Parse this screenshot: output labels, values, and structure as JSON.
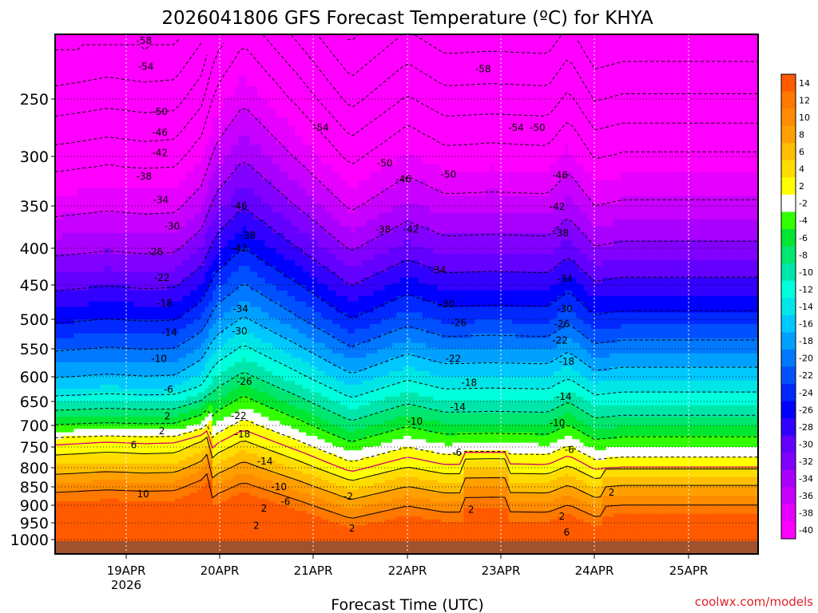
{
  "chart_data": {
    "type": "heatmap",
    "title": "2026041806 GFS Forecast Temperature (ºC) for KHYA",
    "xlabel": "Forecast Time (UTC)",
    "ylabel": "",
    "credit": "coolwx.com/models",
    "y_scale": "pressure (hPa), reversed, non-linear",
    "y_ticks": [
      250,
      300,
      350,
      400,
      450,
      500,
      550,
      600,
      650,
      700,
      750,
      800,
      850,
      900,
      950,
      1000
    ],
    "x_ticks": [
      {
        "label": "19APR",
        "sublabel": "2026"
      },
      {
        "label": "20APR",
        "sublabel": ""
      },
      {
        "label": "21APR",
        "sublabel": ""
      },
      {
        "label": "22APR",
        "sublabel": ""
      },
      {
        "label": "23APR",
        "sublabel": ""
      },
      {
        "label": "24APR",
        "sublabel": ""
      },
      {
        "label": "25APR",
        "sublabel": ""
      }
    ],
    "colorbar": {
      "levels": [
        14,
        12,
        10,
        8,
        6,
        4,
        2,
        -2,
        -4,
        -6,
        -8,
        -10,
        -12,
        -14,
        -16,
        -18,
        -20,
        -22,
        -24,
        -26,
        -28,
        -30,
        -32,
        -34,
        -36,
        -38,
        -40
      ],
      "colors": [
        "#ff5a00",
        "#ff7800",
        "#ff8c00",
        "#ffa000",
        "#ffbe00",
        "#ffdc00",
        "#ffff00",
        "#ffffff",
        "#32ff00",
        "#00e632",
        "#00e66e",
        "#00e6aa",
        "#00ffdc",
        "#00e6e6",
        "#00c8ff",
        "#00a0ff",
        "#0078ff",
        "#0050ff",
        "#0028ff",
        "#0000ff",
        "#3200ff",
        "#6400ff",
        "#8200ff",
        "#aa00ff",
        "#c800ff",
        "#e600ff",
        "#ff00ff"
      ]
    },
    "contour_labels": [
      {
        "text": "-58",
        "t": 0.19,
        "p": 205
      },
      {
        "text": "-54",
        "t": 0.21,
        "p": 225
      },
      {
        "text": "-50",
        "t": 0.36,
        "p": 261
      },
      {
        "text": "-46",
        "t": 0.36,
        "p": 279
      },
      {
        "text": "-42",
        "t": 0.36,
        "p": 297
      },
      {
        "text": "-38",
        "t": 0.19,
        "p": 320
      },
      {
        "text": "-34",
        "t": 0.37,
        "p": 344
      },
      {
        "text": "-30",
        "t": 0.49,
        "p": 374
      },
      {
        "text": "-26",
        "t": 0.31,
        "p": 405
      },
      {
        "text": "-22",
        "t": 0.38,
        "p": 440
      },
      {
        "text": "-18",
        "t": 0.41,
        "p": 477
      },
      {
        "text": "-14",
        "t": 0.46,
        "p": 522
      },
      {
        "text": "-10",
        "t": 0.35,
        "p": 568
      },
      {
        "text": "-6",
        "t": 0.45,
        "p": 626
      },
      {
        "text": "2",
        "t": 0.44,
        "p": 681
      },
      {
        "text": "2",
        "t": 0.38,
        "p": 713
      },
      {
        "text": "6",
        "t": 0.08,
        "p": 745
      },
      {
        "text": "10",
        "t": 0.18,
        "p": 870
      },
      {
        "text": "-38",
        "t": 1.3,
        "p": 385
      },
      {
        "text": "-46",
        "t": 1.21,
        "p": 350
      },
      {
        "text": "-42",
        "t": 1.21,
        "p": 400
      },
      {
        "text": "-34",
        "t": 1.22,
        "p": 485
      },
      {
        "text": "-30",
        "t": 1.21,
        "p": 520
      },
      {
        "text": "-26",
        "t": 1.26,
        "p": 610
      },
      {
        "text": "-22",
        "t": 1.2,
        "p": 680
      },
      {
        "text": "-18",
        "t": 1.24,
        "p": 720
      },
      {
        "text": "-14",
        "t": 1.48,
        "p": 785
      },
      {
        "text": "-10",
        "t": 1.63,
        "p": 850
      },
      {
        "text": "-6",
        "t": 1.7,
        "p": 890
      },
      {
        "text": "2",
        "t": 1.47,
        "p": 909
      },
      {
        "text": "2",
        "t": 1.39,
        "p": 958
      },
      {
        "text": "-54",
        "t": 2.08,
        "p": 275
      },
      {
        "text": "-50",
        "t": 2.76,
        "p": 307
      },
      {
        "text": "-46",
        "t": 2.96,
        "p": 323
      },
      {
        "text": "-38",
        "t": 2.74,
        "p": 378
      },
      {
        "text": "-42",
        "t": 3.04,
        "p": 378
      },
      {
        "text": "-2",
        "t": 2.37,
        "p": 876
      },
      {
        "text": "2",
        "t": 2.41,
        "p": 967
      },
      {
        "text": "-58",
        "t": 3.81,
        "p": 227
      },
      {
        "text": "-54",
        "t": 4.16,
        "p": 275
      },
      {
        "text": "-50",
        "t": 4.39,
        "p": 275
      },
      {
        "text": "-50",
        "t": 3.44,
        "p": 318
      },
      {
        "text": "-34",
        "t": 3.33,
        "p": 430
      },
      {
        "text": "-30",
        "t": 3.42,
        "p": 478
      },
      {
        "text": "-26",
        "t": 3.55,
        "p": 506
      },
      {
        "text": "-22",
        "t": 3.49,
        "p": 568
      },
      {
        "text": "-18",
        "t": 3.66,
        "p": 612
      },
      {
        "text": "-14",
        "t": 3.54,
        "p": 662
      },
      {
        "text": "-10",
        "t": 3.08,
        "p": 692
      },
      {
        "text": "-6",
        "t": 3.53,
        "p": 763
      },
      {
        "text": "2",
        "t": 3.68,
        "p": 913
      },
      {
        "text": "-46",
        "t": 4.63,
        "p": 319
      },
      {
        "text": "-42",
        "t": 4.6,
        "p": 351
      },
      {
        "text": "-38",
        "t": 4.64,
        "p": 382
      },
      {
        "text": "-34",
        "t": 4.68,
        "p": 442
      },
      {
        "text": "-30",
        "t": 4.68,
        "p": 485
      },
      {
        "text": "-26",
        "t": 4.65,
        "p": 508
      },
      {
        "text": "-22",
        "t": 4.63,
        "p": 536
      },
      {
        "text": "-18",
        "t": 4.7,
        "p": 573
      },
      {
        "text": "-14",
        "t": 4.67,
        "p": 640
      },
      {
        "text": "-10",
        "t": 4.6,
        "p": 695
      },
      {
        "text": "-6",
        "t": 4.73,
        "p": 757
      },
      {
        "text": "2",
        "t": 5.18,
        "p": 865
      },
      {
        "text": "2",
        "t": 4.65,
        "p": 932
      },
      {
        "text": "6",
        "t": 4.7,
        "p": 978
      }
    ]
  }
}
